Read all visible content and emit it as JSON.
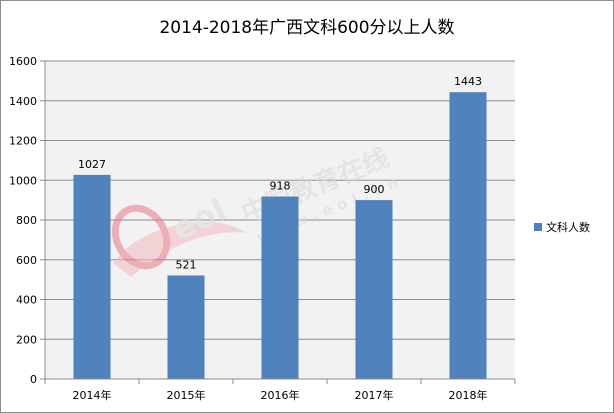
{
  "chart_data": {
    "type": "bar",
    "title": "2014-2018年广西文科600分以上人数",
    "categories": [
      "2014年",
      "2015年",
      "2016年",
      "2017年",
      "2018年"
    ],
    "series": [
      {
        "name": "文科人数",
        "values": [
          1027,
          521,
          918,
          900,
          1443
        ],
        "color": "#4f81bd"
      }
    ],
    "ylim": [
      0,
      1600
    ],
    "yticks": [
      0,
      200,
      400,
      600,
      800,
      1000,
      1200,
      1400,
      1600
    ],
    "grid": true,
    "legend": "right",
    "plot_background": "#f2f2f2"
  },
  "watermark": {
    "text_cn": "中国教育在线",
    "text_en": "www.eol.cn",
    "logo": "eol"
  }
}
